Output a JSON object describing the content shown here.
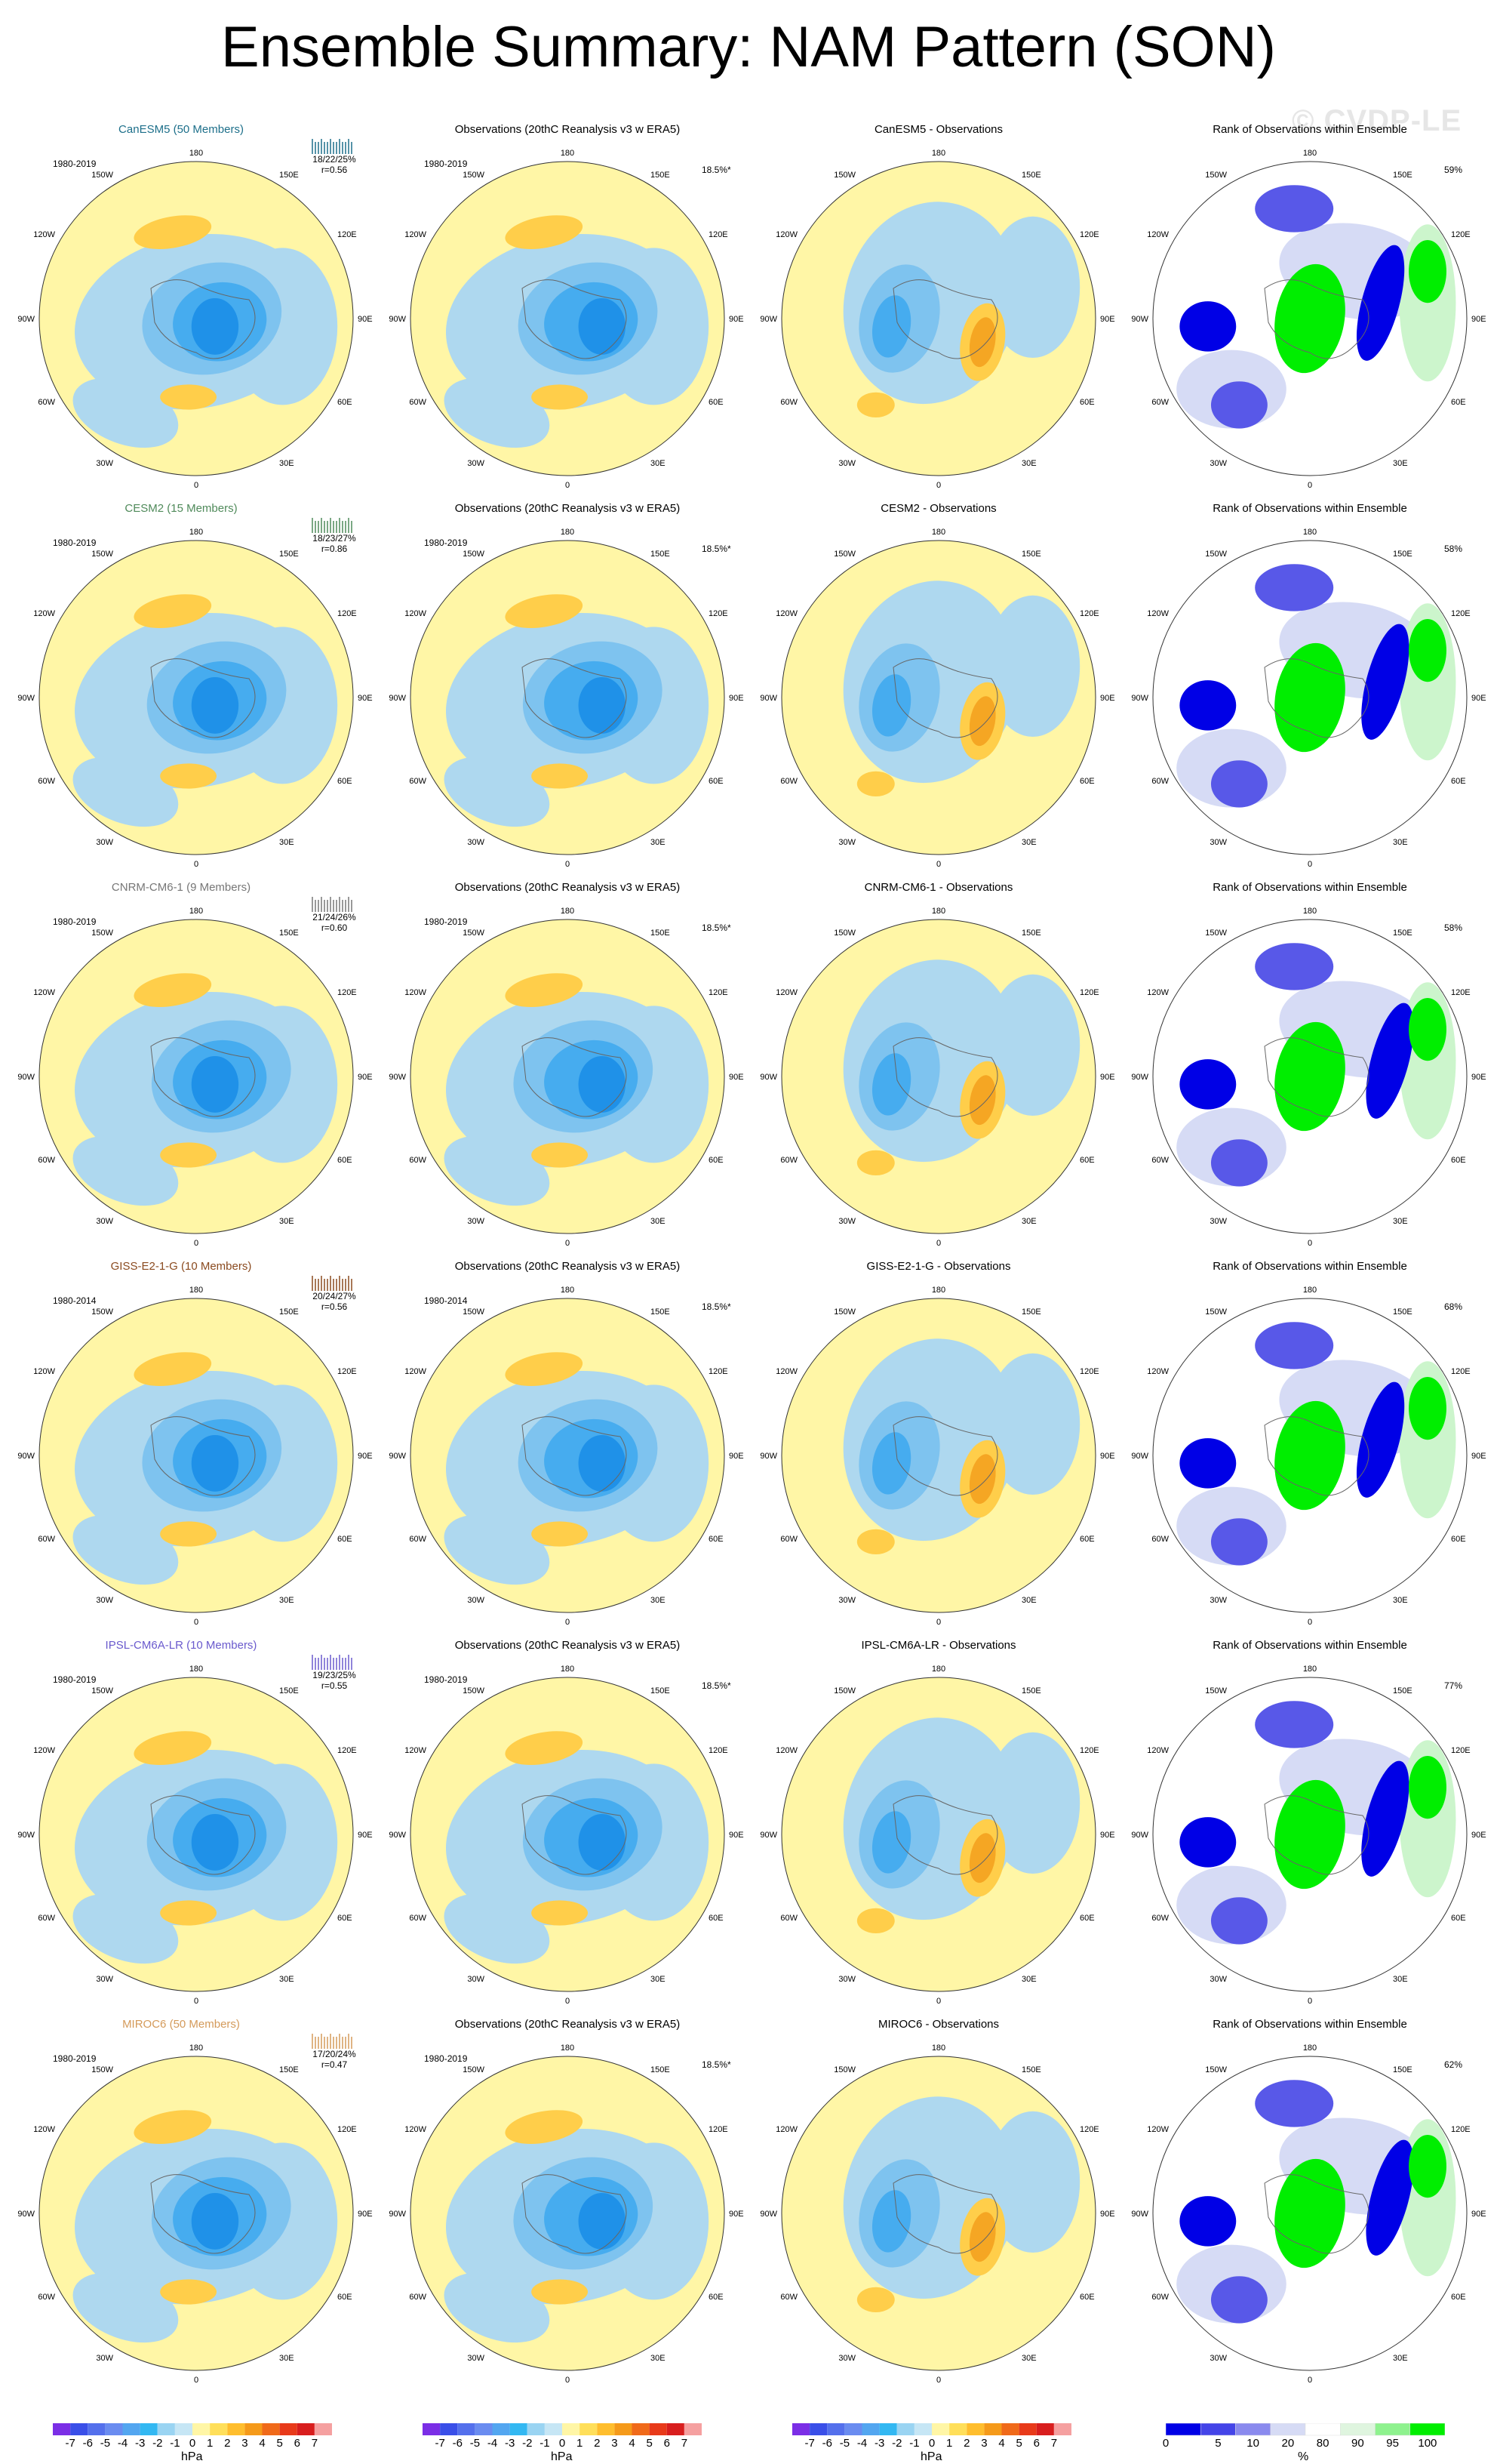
{
  "page": {
    "title": "Ensemble Summary: NAM Pattern (SON)",
    "watermark": "© CVDP-LE"
  },
  "colors": {
    "pos1": "#fff6a6",
    "pos2": "#ffce4a",
    "pos3": "#f5a623",
    "neg1": "#aed8ef",
    "neg2": "#7ec3ef",
    "neg3": "#46acef",
    "neg4": "#1f91e8",
    "rank_blue": "#0000e6",
    "rank_midblue": "#5858e8",
    "rank_lightblue": "#d6dbf5",
    "rank_green": "#00ee00",
    "rank_lightgreen": "#ccf5cc"
  },
  "map_labels": {
    "top": "180",
    "bottom": "0",
    "left": "90W",
    "right": "90E",
    "upper_left": "150W",
    "upper_right": "150E",
    "ul2": "120W",
    "ur2": "120E",
    "ll2": "60W",
    "lr2": "60E",
    "lower_left": "30W",
    "lower_right": "30E"
  },
  "rows": [
    {
      "model": "CanESM5 (50 Members)",
      "model_color": "#1d6f8a",
      "period": "1980-2019",
      "stats": "18/22/25%",
      "corr": "r=0.56",
      "obs_title": "Observations (20thC Reanalysis v3 w ERA5)",
      "obs_period": "1980-2019",
      "obs_pct": "18.5%*",
      "diff_title": "CanESM5 - Observations",
      "rank_title": "Rank of Observations within Ensemble",
      "rank_pct": "59%"
    },
    {
      "model": "CESM2 (15 Members)",
      "model_color": "#4f8a5a",
      "period": "1980-2019",
      "stats": "18/23/27%",
      "corr": "r=0.86",
      "obs_title": "Observations (20thC Reanalysis v3 w ERA5)",
      "obs_period": "1980-2019",
      "obs_pct": "18.5%*",
      "diff_title": "CESM2 - Observations",
      "rank_title": "Rank of Observations within Ensemble",
      "rank_pct": "58%"
    },
    {
      "model": "CNRM-CM6-1 (9 Members)",
      "model_color": "#777777",
      "period": "1980-2019",
      "stats": "21/24/26%",
      "corr": "r=0.60",
      "obs_title": "Observations (20thC Reanalysis v3 w ERA5)",
      "obs_period": "1980-2019",
      "obs_pct": "18.5%*",
      "diff_title": "CNRM-CM6-1 - Observations",
      "rank_title": "Rank of Observations within Ensemble",
      "rank_pct": "58%"
    },
    {
      "model": "GISS-E2-1-G (10 Members)",
      "model_color": "#8a4a1f",
      "period": "1980-2014",
      "stats": "20/24/27%",
      "corr": "r=0.56",
      "obs_title": "Observations (20thC Reanalysis v3 w ERA5)",
      "obs_period": "1980-2014",
      "obs_pct": "18.5%*",
      "diff_title": "GISS-E2-1-G - Observations",
      "rank_title": "Rank of Observations within Ensemble",
      "rank_pct": "68%"
    },
    {
      "model": "IPSL-CM6A-LR (10 Members)",
      "model_color": "#6a5acd",
      "period": "1980-2019",
      "stats": "19/23/25%",
      "corr": "r=0.55",
      "obs_title": "Observations (20thC Reanalysis v3 w ERA5)",
      "obs_period": "1980-2019",
      "obs_pct": "18.5%*",
      "diff_title": "IPSL-CM6A-LR - Observations",
      "rank_title": "Rank of Observations within Ensemble",
      "rank_pct": "77%"
    },
    {
      "model": "MIROC6 (50 Members)",
      "model_color": "#d49a5a",
      "period": "1980-2019",
      "stats": "17/20/24%",
      "corr": "r=0.47",
      "obs_title": "Observations (20thC Reanalysis v3 w ERA5)",
      "obs_period": "1980-2019",
      "obs_pct": "18.5%*",
      "diff_title": "MIROC6 - Observations",
      "rank_title": "Rank of Observations within Ensemble",
      "rank_pct": "62%"
    }
  ],
  "colorbar_hpa": {
    "unit": "hPa",
    "ticks": [
      "-7",
      "-6",
      "-5",
      "-4",
      "-3",
      "-2",
      "-1",
      "0",
      "1",
      "2",
      "3",
      "4",
      "5",
      "6",
      "7"
    ],
    "colors": [
      "#7b2ee6",
      "#3a4fe8",
      "#5470ec",
      "#6a8cf0",
      "#53a6f0",
      "#33b8f2",
      "#9ad4f2",
      "#c6e6f5",
      "#fff6a6",
      "#ffdf5a",
      "#ffbe2e",
      "#f59a1a",
      "#f06a1a",
      "#e83a1a",
      "#d81e1e",
      "#f5a0a0"
    ]
  },
  "colorbar_rank": {
    "unit": "%",
    "ticks": [
      "0",
      "5",
      "10",
      "20",
      "80",
      "90",
      "95",
      "100"
    ],
    "colors": [
      "#0000e6",
      "#4444e8",
      "#8a8aee",
      "#d6dbf5",
      "#ffffff",
      "#dff5df",
      "#8ef28e",
      "#00ee00"
    ]
  },
  "chart_data": {
    "type": "heatmap",
    "title": "Ensemble Summary: NAM Pattern (SON)",
    "description_units": "hPa",
    "panels_per_row": [
      "model ensemble mean",
      "observations",
      "model - observations",
      "rank of observations within ensemble"
    ],
    "models": [
      "CanESM5",
      "CESM2",
      "CNRM-CM6-1",
      "GISS-E2-1-G",
      "IPSL-CM6A-LR",
      "MIROC6"
    ],
    "members": [
      50,
      15,
      9,
      10,
      10,
      50
    ],
    "explained_variance_min_mean_max_pct": [
      [
        18,
        22,
        25
      ],
      [
        18,
        23,
        27
      ],
      [
        21,
        24,
        26
      ],
      [
        20,
        24,
        27
      ],
      [
        19,
        23,
        25
      ],
      [
        17,
        20,
        24
      ]
    ],
    "pattern_correlation": [
      0.56,
      0.86,
      0.6,
      0.56,
      0.55,
      0.47
    ],
    "obs_explained_variance_pct": 18.5,
    "rank_area_pct": [
      59,
      58,
      58,
      68,
      77,
      62
    ],
    "hpa_levels": [
      -7,
      -6,
      -5,
      -4,
      -3,
      -2,
      -1,
      0,
      1,
      2,
      3,
      4,
      5,
      6,
      7
    ],
    "rank_levels": [
      0,
      5,
      10,
      20,
      80,
      90,
      95,
      100
    ]
  }
}
